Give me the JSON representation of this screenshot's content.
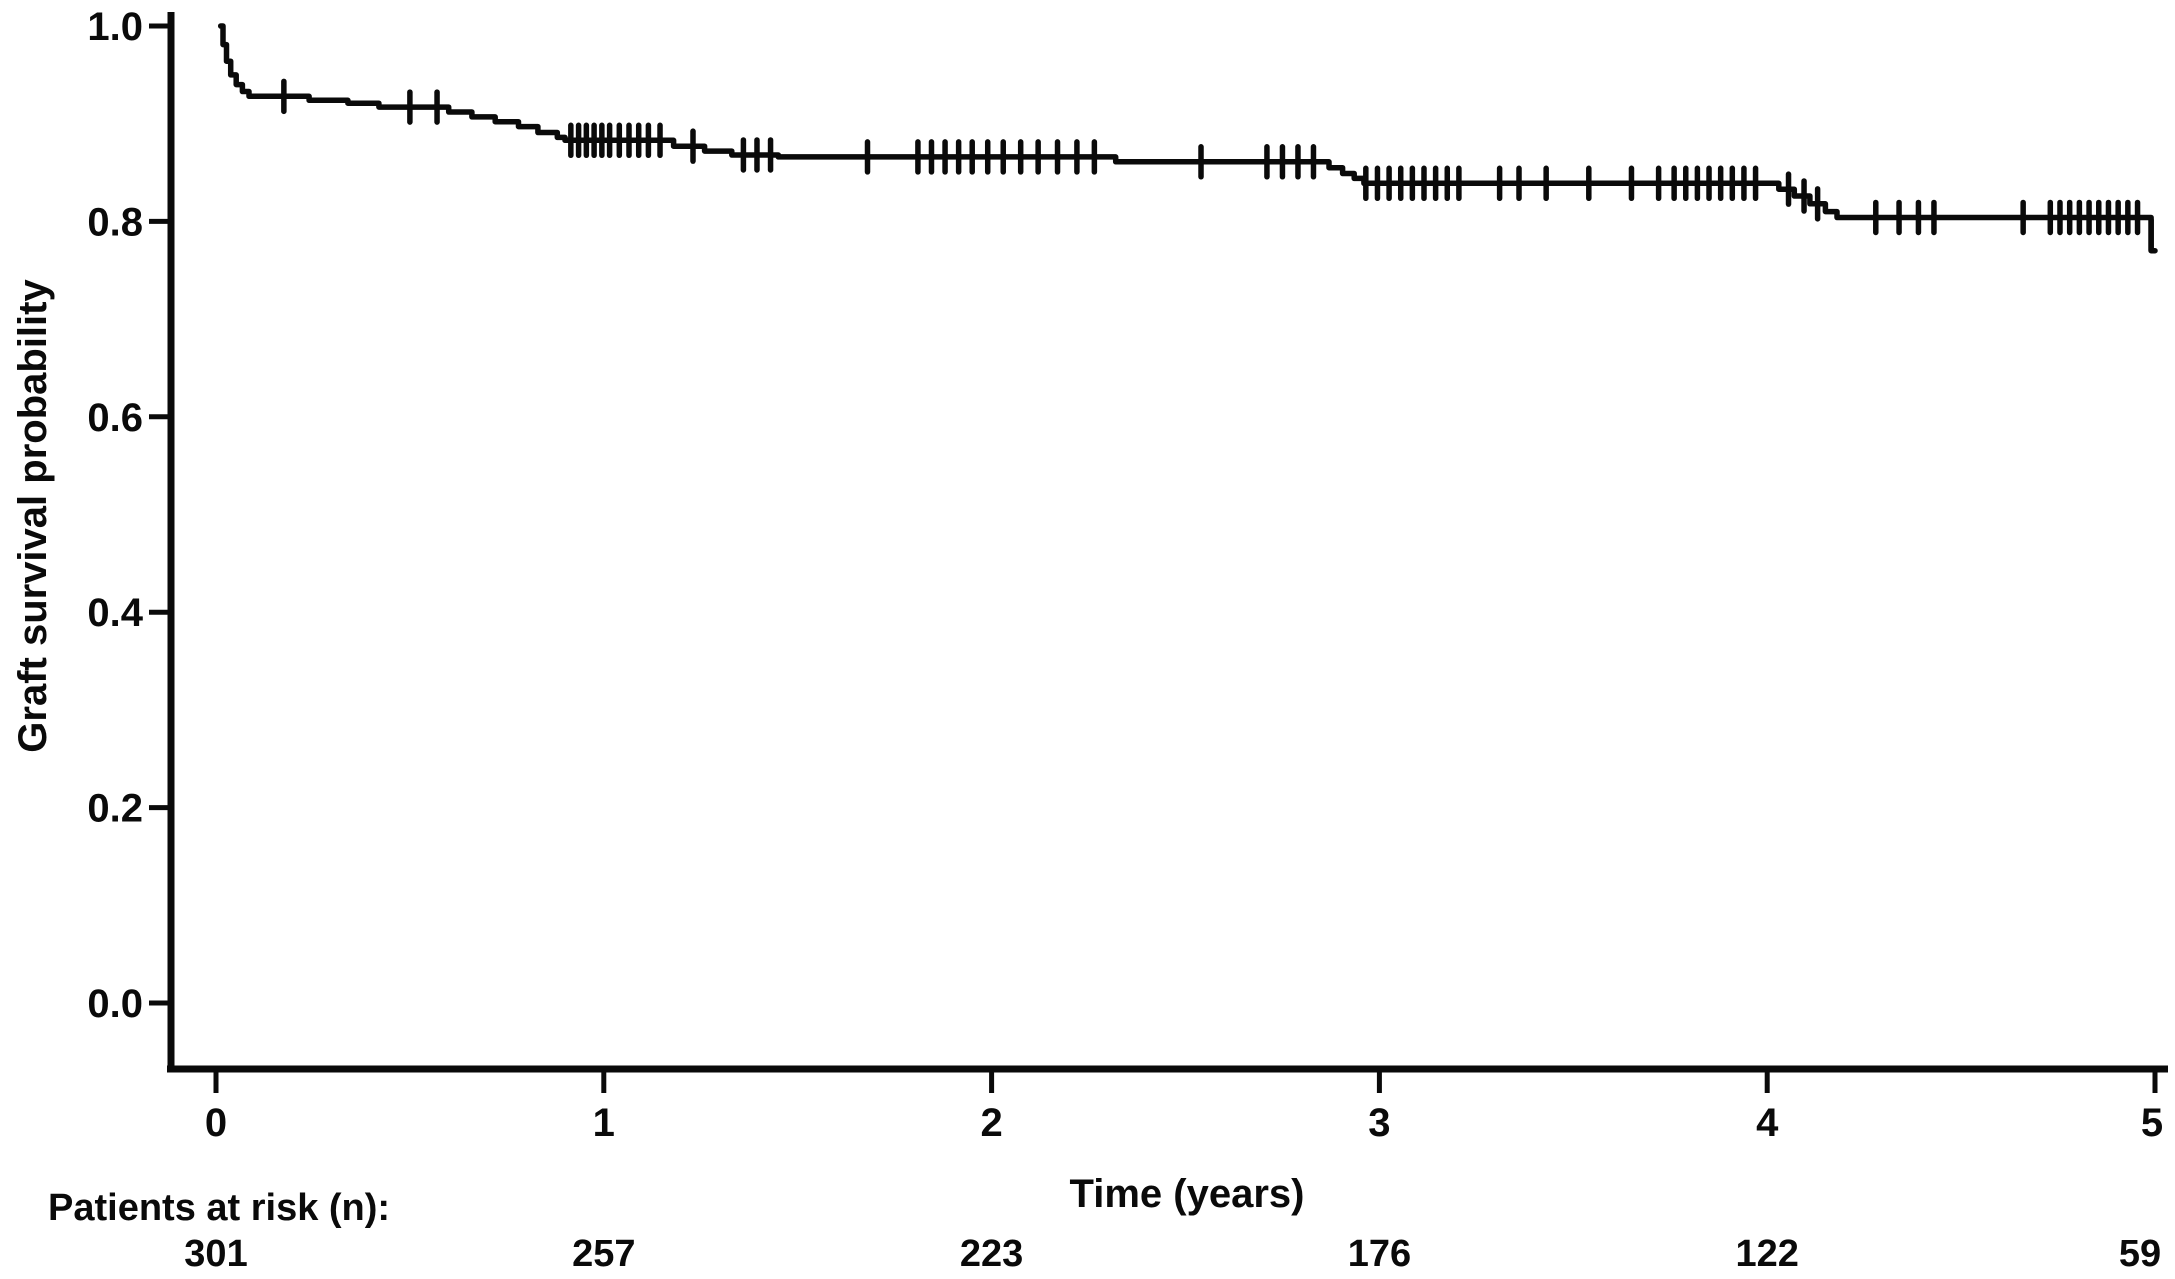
{
  "figure": {
    "background_color": "#ffffff",
    "ink_color": "#0a0a0a"
  },
  "chart_data": {
    "type": "line",
    "subtype": "kaplan-meier-step-curve",
    "title": "",
    "xlabel": "Time (years)",
    "ylabel": "Graft survival probability",
    "xlim": [
      0,
      5
    ],
    "ylim": [
      0.0,
      1.0
    ],
    "grid": "off",
    "legend": "none",
    "x_ticks": [
      0,
      1,
      2,
      3,
      4,
      5
    ],
    "x_tick_labels": [
      "0",
      "1",
      "2",
      "3",
      "4",
      "5"
    ],
    "y_ticks": [
      1.0,
      0.8,
      0.6,
      0.4,
      0.2,
      0.0
    ],
    "y_tick_labels": [
      "1.0",
      "0.8",
      "0.6",
      "0.4",
      "0.2",
      "0.0"
    ],
    "end_time": 5.0,
    "series": [
      {
        "name": "Graft survival",
        "steps": [
          [
            0.012,
            1.0
          ],
          [
            0.018,
            0.981
          ],
          [
            0.027,
            0.964
          ],
          [
            0.038,
            0.95
          ],
          [
            0.052,
            0.94
          ],
          [
            0.068,
            0.933
          ],
          [
            0.085,
            0.928
          ],
          [
            0.24,
            0.924
          ],
          [
            0.34,
            0.921
          ],
          [
            0.42,
            0.917
          ],
          [
            0.6,
            0.912
          ],
          [
            0.66,
            0.907
          ],
          [
            0.72,
            0.902
          ],
          [
            0.78,
            0.897
          ],
          [
            0.83,
            0.891
          ],
          [
            0.88,
            0.886
          ],
          [
            0.9,
            0.883
          ],
          [
            1.18,
            0.877
          ],
          [
            1.26,
            0.872
          ],
          [
            1.33,
            0.868
          ],
          [
            1.45,
            0.866
          ],
          [
            2.32,
            0.861
          ],
          [
            2.87,
            0.855
          ],
          [
            2.905,
            0.849
          ],
          [
            2.935,
            0.844
          ],
          [
            2.96,
            0.839
          ],
          [
            4.03,
            0.833
          ],
          [
            4.07,
            0.826
          ],
          [
            4.11,
            0.818
          ],
          [
            4.15,
            0.81
          ],
          [
            4.18,
            0.804
          ],
          [
            4.99,
            0.77
          ]
        ],
        "censor_marks": [
          [
            0.175,
            0.928
          ],
          [
            0.5,
            0.917
          ],
          [
            0.57,
            0.917
          ],
          [
            0.915,
            0.883
          ],
          [
            0.935,
            0.883
          ],
          [
            0.955,
            0.883
          ],
          [
            0.975,
            0.883
          ],
          [
            0.995,
            0.883
          ],
          [
            1.015,
            0.883
          ],
          [
            1.04,
            0.883
          ],
          [
            1.065,
            0.883
          ],
          [
            1.09,
            0.883
          ],
          [
            1.115,
            0.883
          ],
          [
            1.145,
            0.883
          ],
          [
            1.23,
            0.877
          ],
          [
            1.36,
            0.868
          ],
          [
            1.395,
            0.868
          ],
          [
            1.43,
            0.868
          ],
          [
            1.68,
            0.866
          ],
          [
            1.81,
            0.866
          ],
          [
            1.845,
            0.866
          ],
          [
            1.88,
            0.866
          ],
          [
            1.915,
            0.866
          ],
          [
            1.95,
            0.866
          ],
          [
            1.99,
            0.866
          ],
          [
            2.03,
            0.866
          ],
          [
            2.075,
            0.866
          ],
          [
            2.12,
            0.866
          ],
          [
            2.17,
            0.866
          ],
          [
            2.22,
            0.866
          ],
          [
            2.265,
            0.866
          ],
          [
            2.54,
            0.861
          ],
          [
            2.71,
            0.861
          ],
          [
            2.75,
            0.861
          ],
          [
            2.79,
            0.861
          ],
          [
            2.83,
            0.861
          ],
          [
            2.965,
            0.839
          ],
          [
            2.995,
            0.839
          ],
          [
            3.025,
            0.839
          ],
          [
            3.055,
            0.839
          ],
          [
            3.085,
            0.839
          ],
          [
            3.115,
            0.839
          ],
          [
            3.145,
            0.839
          ],
          [
            3.175,
            0.839
          ],
          [
            3.205,
            0.839
          ],
          [
            3.31,
            0.839
          ],
          [
            3.36,
            0.839
          ],
          [
            3.43,
            0.839
          ],
          [
            3.54,
            0.839
          ],
          [
            3.65,
            0.839
          ],
          [
            3.72,
            0.839
          ],
          [
            3.76,
            0.839
          ],
          [
            3.79,
            0.839
          ],
          [
            3.82,
            0.839
          ],
          [
            3.85,
            0.839
          ],
          [
            3.88,
            0.839
          ],
          [
            3.91,
            0.839
          ],
          [
            3.94,
            0.839
          ],
          [
            3.97,
            0.839
          ],
          [
            4.055,
            0.833
          ],
          [
            4.095,
            0.826
          ],
          [
            4.13,
            0.818
          ],
          [
            4.28,
            0.804
          ],
          [
            4.34,
            0.804
          ],
          [
            4.39,
            0.804
          ],
          [
            4.43,
            0.804
          ],
          [
            4.66,
            0.804
          ],
          [
            4.73,
            0.804
          ],
          [
            4.755,
            0.804
          ],
          [
            4.78,
            0.804
          ],
          [
            4.805,
            0.804
          ],
          [
            4.83,
            0.804
          ],
          [
            4.855,
            0.804
          ],
          [
            4.88,
            0.804
          ],
          [
            4.905,
            0.804
          ],
          [
            4.93,
            0.804
          ],
          [
            4.955,
            0.804
          ],
          [
            4.99,
            0.786
          ]
        ]
      }
    ],
    "at_risk": {
      "label": "Patients at risk (n):",
      "times": [
        0,
        1,
        2,
        3,
        4,
        5
      ],
      "counts": [
        "301",
        "257",
        "223",
        "176",
        "122",
        "59"
      ]
    }
  }
}
